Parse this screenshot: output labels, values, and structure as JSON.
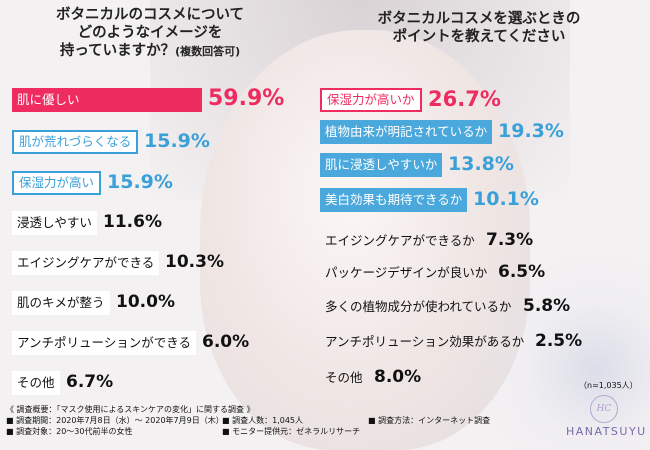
{
  "left_title": {
    "line1": "ボタニカルのコスメについて",
    "line2": "どのようなイメージを",
    "line3": "持っていますか？",
    "note": "(複数回答可)"
  },
  "right_title": {
    "line1": "ボタニカルコスメを選ぶときの",
    "line2": "ポイントを教えてください"
  },
  "chart_data": [
    {
      "type": "bar",
      "title": "ボタニカルのコスメについてどのようなイメージを持っていますか？(複数回答可)",
      "categories": [
        "肌に優しい",
        "肌が荒れづらくなる",
        "保湿力が高い",
        "浸透しやすい",
        "エイジングケアができる",
        "肌のキメが整う",
        "アンチポリューションができる",
        "その他"
      ],
      "values": [
        59.9,
        15.9,
        15.9,
        11.6,
        10.3,
        10.0,
        6.0,
        6.7
      ],
      "value_labels": [
        "59.9%",
        "15.9%",
        "15.9%",
        "11.6%",
        "10.3%",
        "10.0%",
        "6.0%",
        "6.7%"
      ],
      "unit": "%",
      "colors": {
        "top": "#ef2c60",
        "accent": "#3aa0d8",
        "default": "#111111"
      }
    },
    {
      "type": "bar",
      "title": "ボタニカルコスメを選ぶときのポイントを教えてください",
      "categories": [
        "保湿力が高いか",
        "植物由来が明記されているか",
        "肌に浸透しやすいか",
        "美白効果も期待できるか",
        "エイジングケアができるか",
        "パッケージデザインが良いか",
        "多くの植物成分が使われているか",
        "アンチポリューション効果があるか",
        "その他"
      ],
      "values": [
        26.7,
        19.3,
        13.8,
        10.1,
        7.3,
        6.5,
        5.8,
        2.5,
        8.0
      ],
      "value_labels": [
        "26.7%",
        "19.3%",
        "13.8%",
        "10.1%",
        "7.3%",
        "6.5%",
        "5.8%",
        "2.5%",
        "8.0%"
      ],
      "unit": "%",
      "colors": {
        "top": "#ef2c60",
        "accent": "#3aa0d8",
        "default": "#111111"
      }
    }
  ],
  "respondents": "（n=1,035人）",
  "survey": {
    "summary": "《 調査概要：「マスク使用によるスキンケアの変化」に関する調査 》",
    "period": "■ 調査期間：2020年7月8日（水）～ 2020年7月9日（木）",
    "count": "■ 調査人数：1,045人",
    "method": "■ 調査方法：インターネット調査",
    "target": "■ 調査対象：20～30代前半の女性",
    "monitor": "■ モニター提供元：ゼネラルリサーチ"
  },
  "brand": {
    "name": "HANATSUYU",
    "mark": "HC"
  }
}
